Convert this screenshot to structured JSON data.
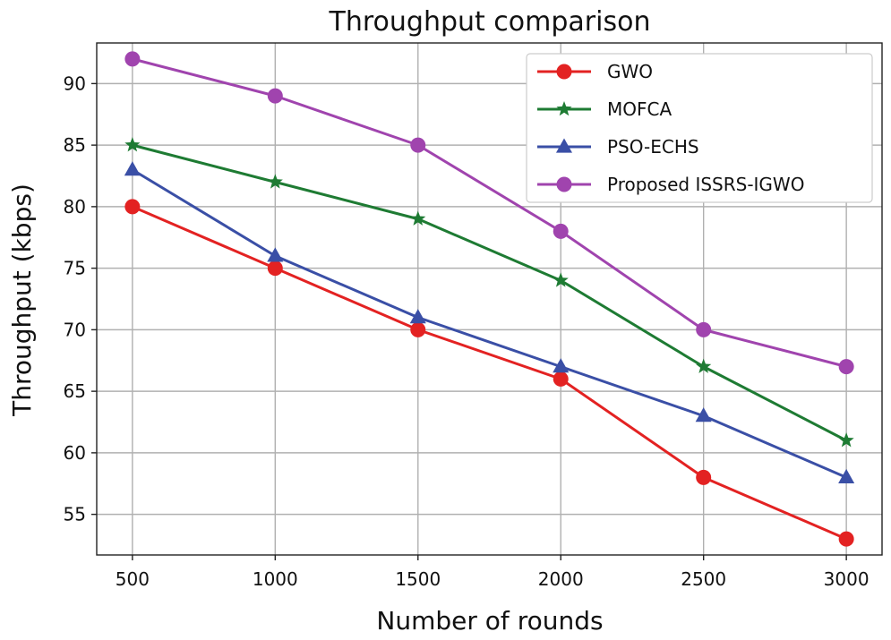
{
  "chart_data": {
    "type": "line",
    "title": "Throughput comparison",
    "xlabel": "Number of rounds",
    "ylabel": "Throughput (kbps)",
    "x": [
      500,
      1000,
      1500,
      2000,
      2500,
      3000
    ],
    "xticks": [
      "500",
      "1000",
      "1500",
      "2000",
      "2500",
      "3000"
    ],
    "yticks": [
      "55",
      "60",
      "65",
      "70",
      "75",
      "80",
      "85",
      "90"
    ],
    "ytick_values": [
      55,
      60,
      65,
      70,
      75,
      80,
      85,
      90
    ],
    "xlim": [
      375,
      3125
    ],
    "ylim": [
      51.7,
      93.3
    ],
    "grid": true,
    "legend_position": "top-right",
    "series": [
      {
        "name": "GWO",
        "color": "#e32222",
        "marker": "circle",
        "values": [
          80,
          75,
          70,
          66,
          58,
          53
        ]
      },
      {
        "name": "MOFCA",
        "color": "#1e7b33",
        "marker": "star",
        "values": [
          85,
          82,
          79,
          74,
          67,
          61
        ]
      },
      {
        "name": "PSO-ECHS",
        "color": "#3a4fa6",
        "marker": "triangle",
        "values": [
          83,
          76,
          71,
          67,
          63,
          58
        ]
      },
      {
        "name": "Proposed ISSRS-IGWO",
        "color": "#a044ae",
        "marker": "circle",
        "values": [
          92,
          89,
          85,
          78,
          70,
          67
        ]
      }
    ]
  }
}
